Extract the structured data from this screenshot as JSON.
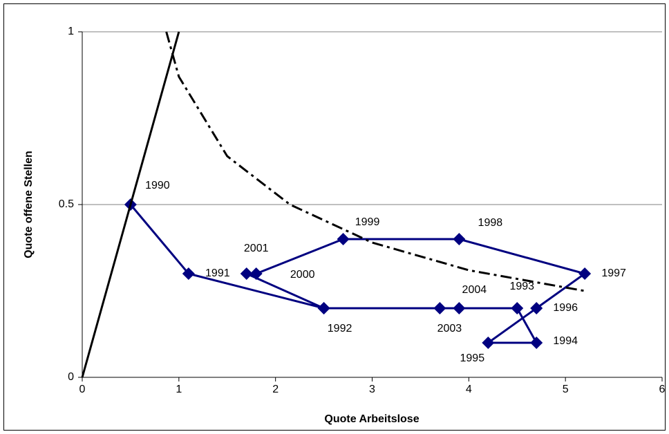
{
  "chart_data": {
    "type": "line",
    "x_label": "Quote Arbeitslose",
    "y_label": "Quote offene Stellen",
    "xlim": [
      0,
      6
    ],
    "xticks": [
      0,
      1,
      2,
      3,
      4,
      5,
      6
    ],
    "ylim": [
      0,
      1
    ],
    "yticks": [
      0,
      0.5,
      1
    ],
    "grid": true,
    "series": [
      {
        "color": "#000080",
        "marker": "diamond",
        "dash": false,
        "x": [
          0.5,
          1.1,
          2.5,
          4.5,
          4.7,
          4.2,
          4.7,
          5.2,
          3.9,
          2.7,
          1.8,
          1.7,
          2.5,
          3.7,
          3.9
        ],
        "values": [
          0.5,
          0.3,
          0.2,
          0.2,
          0.1,
          0.1,
          0.2,
          0.3,
          0.4,
          0.4,
          0.3,
          0.3,
          0.2,
          0.2,
          0.2
        ],
        "labels": [
          "1990",
          "1991",
          "1992",
          "1993",
          "1994",
          "1995",
          "1996",
          "1997",
          "1998",
          "1999",
          "2000",
          "2001",
          null,
          "2003",
          "2004"
        ]
      },
      {
        "color": "#000000",
        "dash": true,
        "x": [
          0.87,
          1,
          1.5,
          2.15,
          3,
          4,
          5.2
        ],
        "values": [
          1,
          0.87,
          0.64,
          0.5,
          0.39,
          0.31,
          0.25
        ]
      },
      {
        "color": "#000000",
        "dash": false,
        "x": [
          0,
          1
        ],
        "values": [
          0,
          1
        ]
      }
    ]
  }
}
